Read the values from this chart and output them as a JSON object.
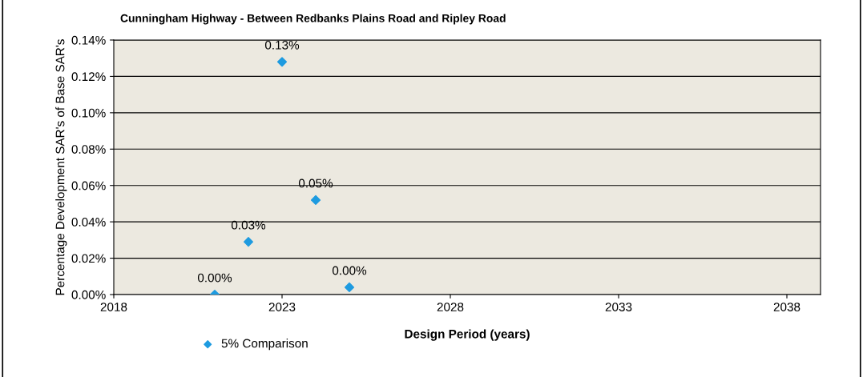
{
  "chart_data": {
    "type": "scatter",
    "title": "Cunningham Highway - Between Redbanks Plains Road and Ripley Road",
    "xlabel": "Design Period (years)",
    "ylabel": "Percentage Development SAR's of Base SAR's",
    "x": [
      2021,
      2022,
      2023,
      2024,
      2025
    ],
    "series": [
      {
        "name": "5% Comparison",
        "color": "#1e9be0",
        "values": [
          0.0,
          0.029,
          0.128,
          0.052,
          0.004
        ],
        "value_labels": [
          "0.00%",
          "0.03%",
          "0.13%",
          "0.05%",
          "0.00%"
        ]
      }
    ],
    "xlim": [
      2018,
      2039
    ],
    "xticks": [
      2018,
      2023,
      2028,
      2033,
      2038
    ],
    "ylim": [
      0,
      0.14
    ],
    "yticks": [
      {
        "value": 0,
        "label": "0.00%"
      },
      {
        "value": 0.02,
        "label": "0.02%"
      },
      {
        "value": 0.04,
        "label": "0.04%"
      },
      {
        "value": 0.06,
        "label": "0.06%"
      },
      {
        "value": 0.08,
        "label": "0.08%"
      },
      {
        "value": 0.1,
        "label": "0.10%"
      },
      {
        "value": 0.12,
        "label": "0.12%"
      },
      {
        "value": 0.14,
        "label": "0.14%"
      }
    ],
    "grid": "y",
    "legend": "bottom left",
    "marker": "diamond"
  }
}
